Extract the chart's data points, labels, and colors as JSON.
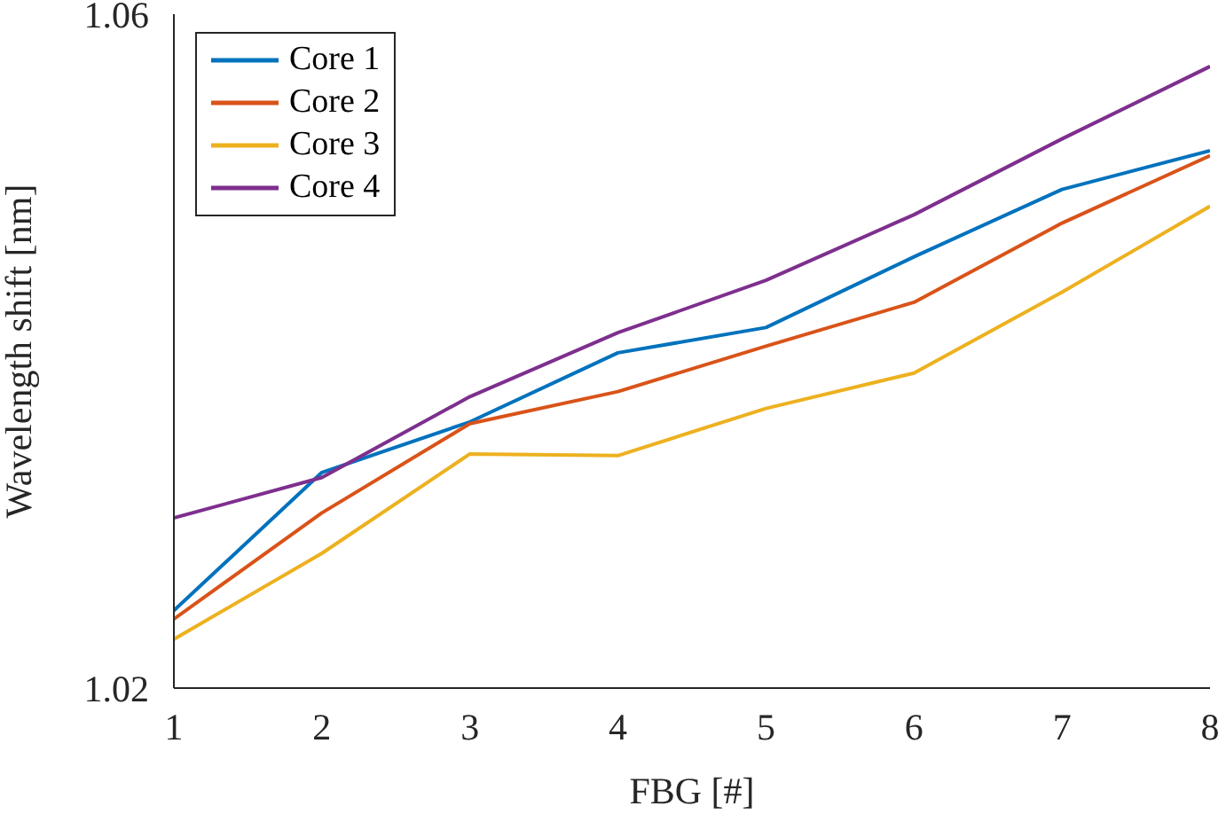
{
  "chart_data": {
    "type": "line",
    "xlabel": "FBG [#]",
    "ylabel": "Wavelength shift [nm]",
    "x": [
      1,
      2,
      3,
      4,
      5,
      6,
      7,
      8
    ],
    "series": [
      {
        "name": "Core 1",
        "color": "#0072bd",
        "values": [
          1.0246,
          1.0328,
          1.0358,
          1.0399,
          1.0414,
          1.0456,
          1.0496,
          1.0519
        ]
      },
      {
        "name": "Core 2",
        "color": "#d95319",
        "values": [
          1.0241,
          1.0304,
          1.0357,
          1.0376,
          1.0403,
          1.0429,
          1.0476,
          1.0516
        ]
      },
      {
        "name": "Core 3",
        "color": "#edb120",
        "values": [
          1.0229,
          1.028,
          1.0339,
          1.0338,
          1.0366,
          1.0387,
          1.0435,
          1.0486
        ]
      },
      {
        "name": "Core 4",
        "color": "#7e2f8e",
        "values": [
          1.0301,
          1.0325,
          1.0373,
          1.0411,
          1.0442,
          1.0481,
          1.0526,
          1.0569
        ]
      }
    ],
    "xlim": [
      1,
      8
    ],
    "xticks": [
      1,
      2,
      3,
      4,
      5,
      6,
      7,
      8
    ],
    "ylim": [
      1.02,
      1.06
    ],
    "yticks": [
      1.02,
      1.06
    ],
    "legend": "top left",
    "marker": "none",
    "line_style": "solid",
    "grid": false
  }
}
